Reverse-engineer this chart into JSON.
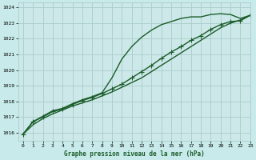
{
  "title": "Graphe pression niveau de la mer (hPa)",
  "bg_color": "#c8eaea",
  "plot_bg_color": "#cde8e8",
  "grid_color": "#a8cccc",
  "line_color": "#1a5c2a",
  "xlim": [
    -0.5,
    23
  ],
  "ylim": [
    1015.5,
    1024.3
  ],
  "yticks": [
    1016,
    1017,
    1018,
    1019,
    1020,
    1021,
    1022,
    1023,
    1024
  ],
  "xticks": [
    0,
    1,
    2,
    3,
    4,
    5,
    6,
    7,
    8,
    9,
    10,
    11,
    12,
    13,
    14,
    15,
    16,
    17,
    18,
    19,
    20,
    21,
    22,
    23
  ],
  "series": [
    {
      "x": [
        0,
        1,
        2,
        3,
        4,
        5,
        6,
        7,
        8,
        9,
        10,
        11,
        12,
        13,
        14,
        15,
        16,
        17,
        18,
        19,
        20,
        21,
        22,
        23
      ],
      "y": [
        1015.9,
        1016.7,
        1017.0,
        1017.35,
        1017.5,
        1017.8,
        1018.05,
        1018.25,
        1018.5,
        1018.8,
        1019.1,
        1019.5,
        1019.9,
        1020.3,
        1020.75,
        1021.15,
        1021.5,
        1021.9,
        1022.2,
        1022.6,
        1022.9,
        1023.1,
        1023.15,
        1023.5
      ],
      "marker": "+",
      "marker_size": 4,
      "linewidth": 1.0
    },
    {
      "x": [
        0,
        1,
        2,
        3,
        4,
        5,
        6,
        7,
        8,
        9,
        10,
        11,
        12,
        13,
        14,
        15,
        16,
        17,
        18,
        19,
        20,
        21,
        22,
        23
      ],
      "y": [
        1015.9,
        1016.7,
        1017.05,
        1017.4,
        1017.55,
        1017.85,
        1018.1,
        1018.3,
        1018.55,
        1019.5,
        1020.7,
        1021.5,
        1022.1,
        1022.55,
        1022.9,
        1023.1,
        1023.3,
        1023.4,
        1023.4,
        1023.55,
        1023.6,
        1023.55,
        1023.3,
        1023.5
      ],
      "marker": null,
      "linewidth": 1.0
    },
    {
      "x": [
        0,
        1,
        2,
        3,
        4,
        5,
        6,
        7,
        8,
        9,
        10,
        11,
        12,
        13,
        14,
        15,
        16,
        17,
        18,
        19,
        20,
        21,
        22,
        23
      ],
      "y": [
        1015.9,
        1016.5,
        1016.9,
        1017.2,
        1017.45,
        1017.7,
        1017.9,
        1018.1,
        1018.35,
        1018.6,
        1018.9,
        1019.2,
        1019.5,
        1019.9,
        1020.3,
        1020.7,
        1021.1,
        1021.5,
        1021.9,
        1022.3,
        1022.7,
        1023.0,
        1023.2,
        1023.5
      ],
      "marker": null,
      "linewidth": 1.0
    }
  ]
}
